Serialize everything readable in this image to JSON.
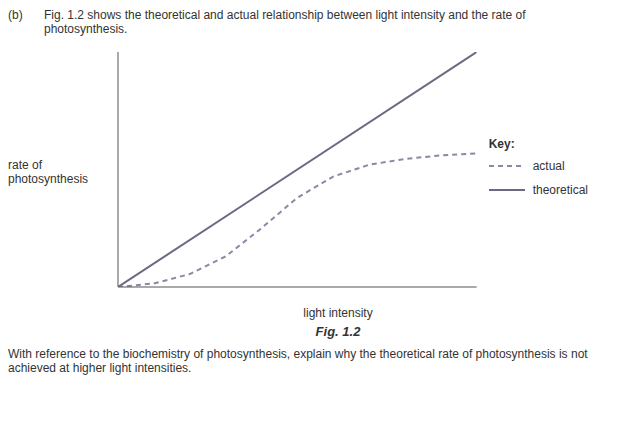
{
  "chart_data": {
    "type": "line",
    "title": "Fig. 1.2",
    "x_label": "light intensity",
    "y_label": [
      "rate of",
      "photosynthesis"
    ],
    "annotations": [
      "(b)",
      "Fig. 1.2 shows the theoretical and actual relationship between light intensity and the rate of photosynthesis.",
      "Key:",
      "With reference to the biochemistry of photosynthesis, explain why the theoretical rate of photosynthesis is not achieved at higher light intensities."
    ],
    "series": [
      {
        "name": "theoretical",
        "color": "#6a6a82",
        "line_style": "solid",
        "x": [
          0,
          10
        ],
        "values": [
          0,
          10
        ]
      },
      {
        "name": "actual",
        "color": "#8888a8",
        "line_style": "dashed",
        "x": [
          0,
          1,
          2,
          3,
          4,
          5,
          6,
          7,
          8,
          9,
          10
        ],
        "values": [
          0,
          0.15,
          0.55,
          1.3,
          2.5,
          3.8,
          4.7,
          5.2,
          5.45,
          5.6,
          5.68
        ]
      }
    ],
    "xlim": [
      0,
      10
    ],
    "ylim": [
      0,
      10
    ],
    "tick_labels": false,
    "grid": false,
    "legend": "right"
  }
}
